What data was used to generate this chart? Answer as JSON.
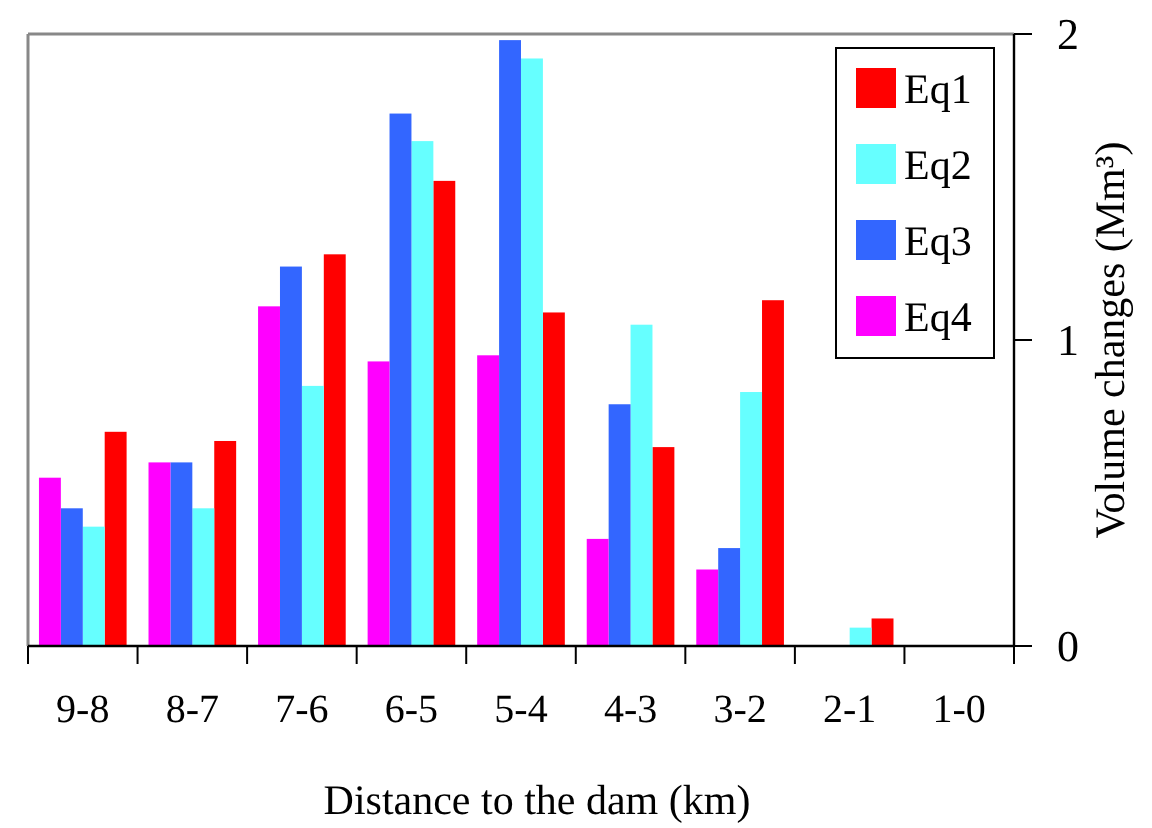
{
  "chart_data": {
    "type": "bar",
    "xlabel": "Distance to the dam (km)",
    "ylabel": "Volume changes (Mm³)",
    "categories": [
      "9-8",
      "8-7",
      "7-6",
      "6-5",
      "5-4",
      "4-3",
      "3-2",
      "2-1",
      "1-0"
    ],
    "series": [
      {
        "name": "Eq1",
        "color": "#ff0000",
        "values": [
          0.7,
          0.67,
          1.28,
          1.52,
          1.09,
          0.65,
          1.13,
          0.09,
          0
        ]
      },
      {
        "name": "Eq2",
        "color": "#66ffff",
        "values": [
          0.39,
          0.45,
          0.85,
          1.65,
          1.92,
          1.05,
          0.83,
          0.06,
          0
        ]
      },
      {
        "name": "Eq3",
        "color": "#3366ff",
        "values": [
          0.45,
          0.6,
          1.24,
          1.74,
          1.98,
          0.79,
          0.32,
          0,
          0
        ]
      },
      {
        "name": "Eq4",
        "color": "#ff00ff",
        "values": [
          0.55,
          0.6,
          1.11,
          0.93,
          0.95,
          0.35,
          0.25,
          0,
          0
        ]
      }
    ],
    "ylim": [
      0,
      2
    ],
    "yticks": [
      0,
      1,
      2
    ],
    "grid": false,
    "legend": "top right"
  }
}
